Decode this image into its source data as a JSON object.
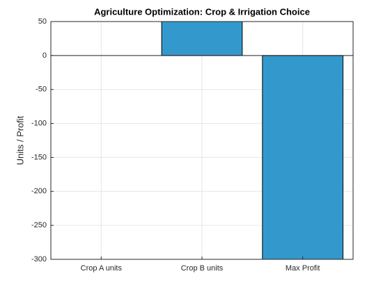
{
  "chart_data": {
    "type": "bar",
    "title": "Agriculture Optimization: Crop & Irrigation Choice",
    "ylabel": "Units / Profit",
    "categories": [
      "Crop A units",
      "Crop B units",
      "Max Profit"
    ],
    "values": [
      0,
      50,
      -300
    ],
    "color": "#3399cc",
    "ylim": [
      -300,
      50
    ],
    "yticks": [
      -300,
      -250,
      -200,
      -150,
      -100,
      -50,
      0,
      50
    ],
    "grid": true
  }
}
